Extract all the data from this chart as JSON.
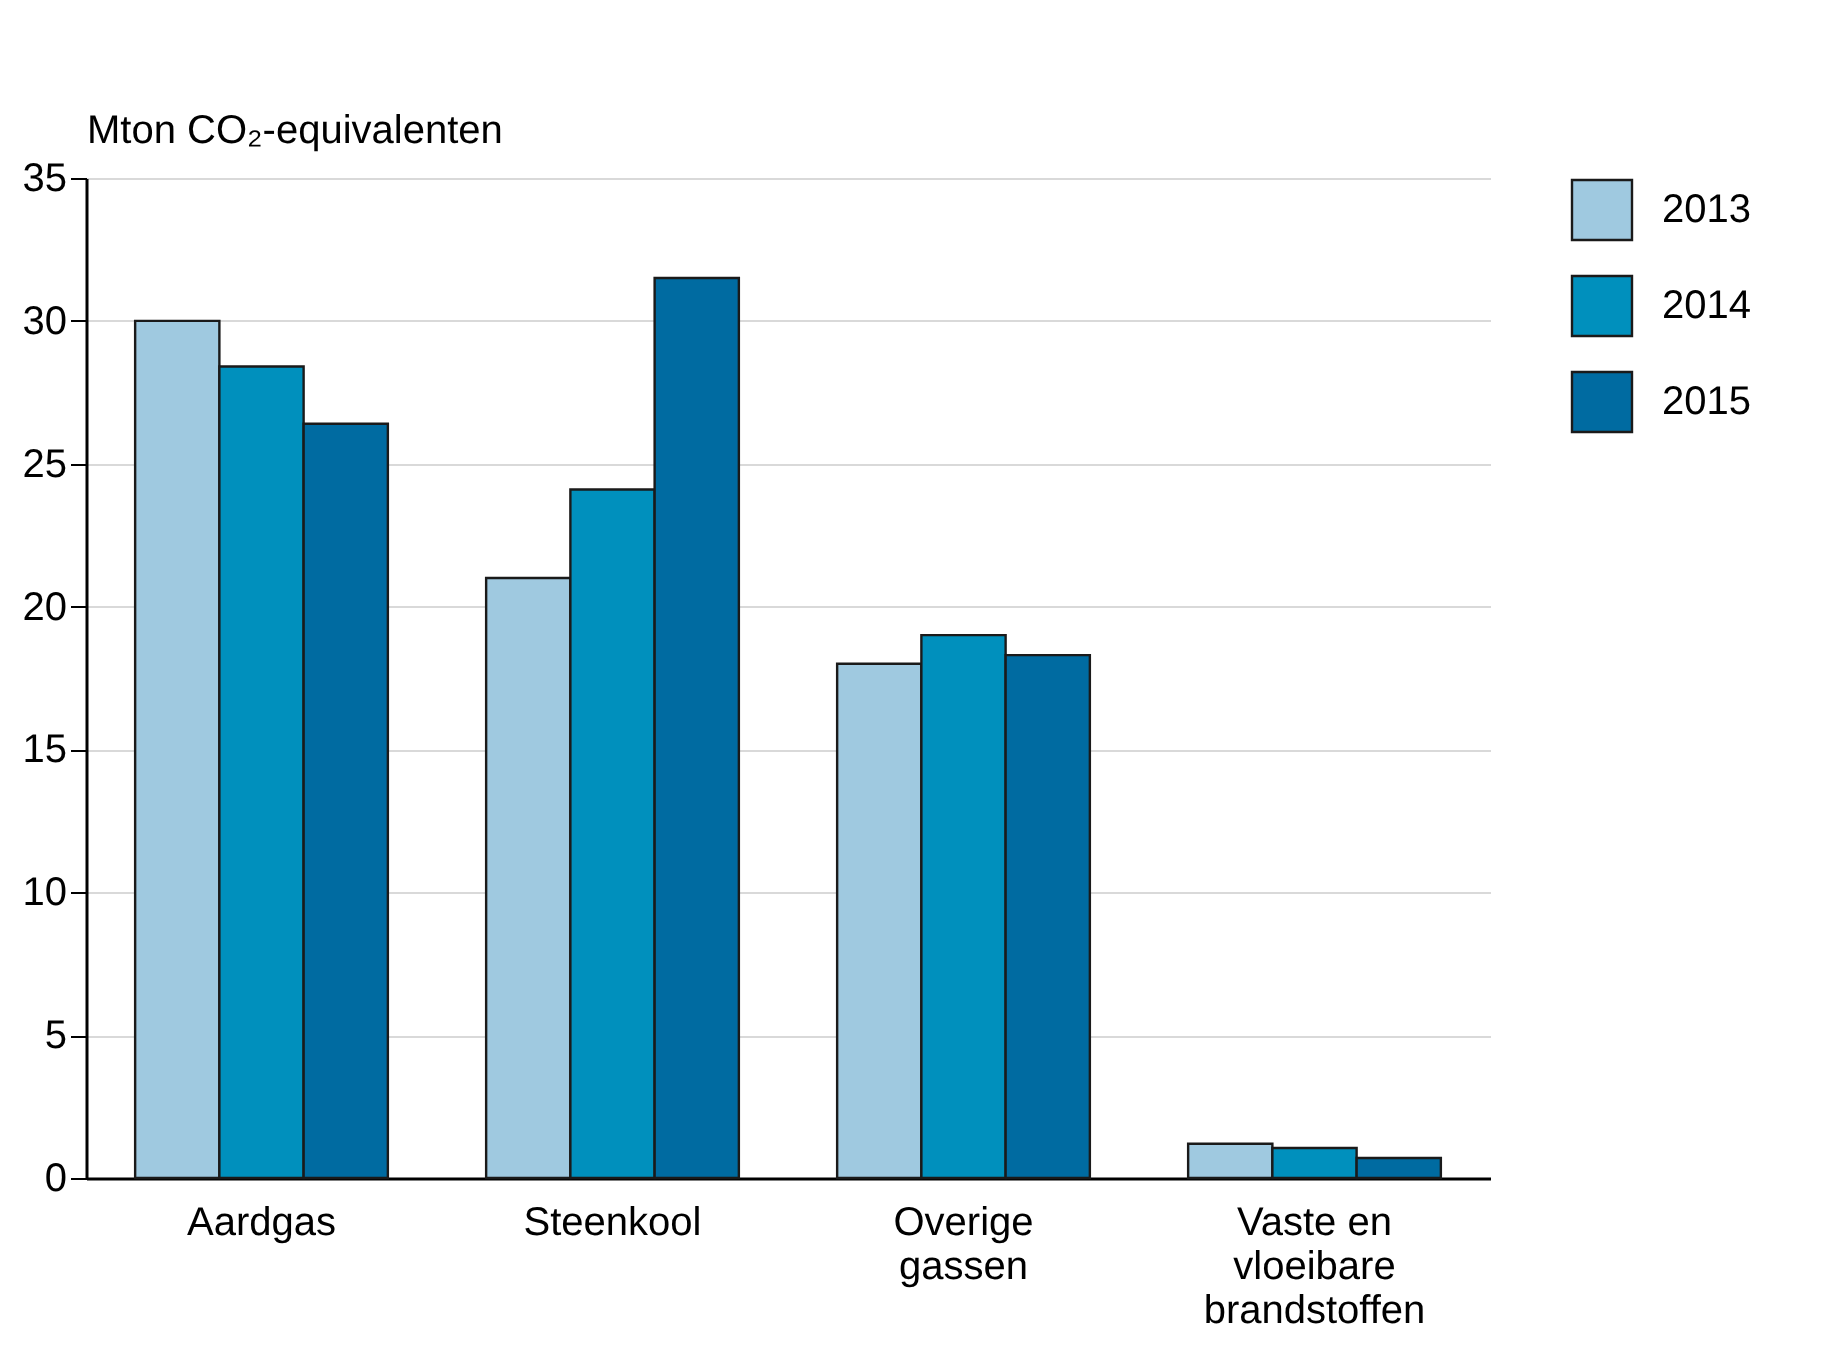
{
  "chart_data": {
    "type": "bar",
    "ylabel": "Mton CO₂-equivalenten",
    "categories": [
      "Aardgas",
      "Steenkool",
      "Overige gassen",
      "Vaste en vloeibare brandstoffen"
    ],
    "series": [
      {
        "name": "2013",
        "color": "#9fc9e0",
        "values": [
          30,
          21,
          18,
          1.2
        ]
      },
      {
        "name": "2014",
        "color": "#0090bd",
        "values": [
          28.4,
          24.1,
          19,
          1.05
        ]
      },
      {
        "name": "2015",
        "color": "#006ba1",
        "values": [
          26.4,
          31.5,
          18.3,
          0.7
        ]
      }
    ],
    "ylim": [
      0,
      35
    ],
    "yticks": [
      0,
      5,
      10,
      15,
      20,
      25,
      30,
      35
    ],
    "grid": "y",
    "legend": "top right"
  }
}
